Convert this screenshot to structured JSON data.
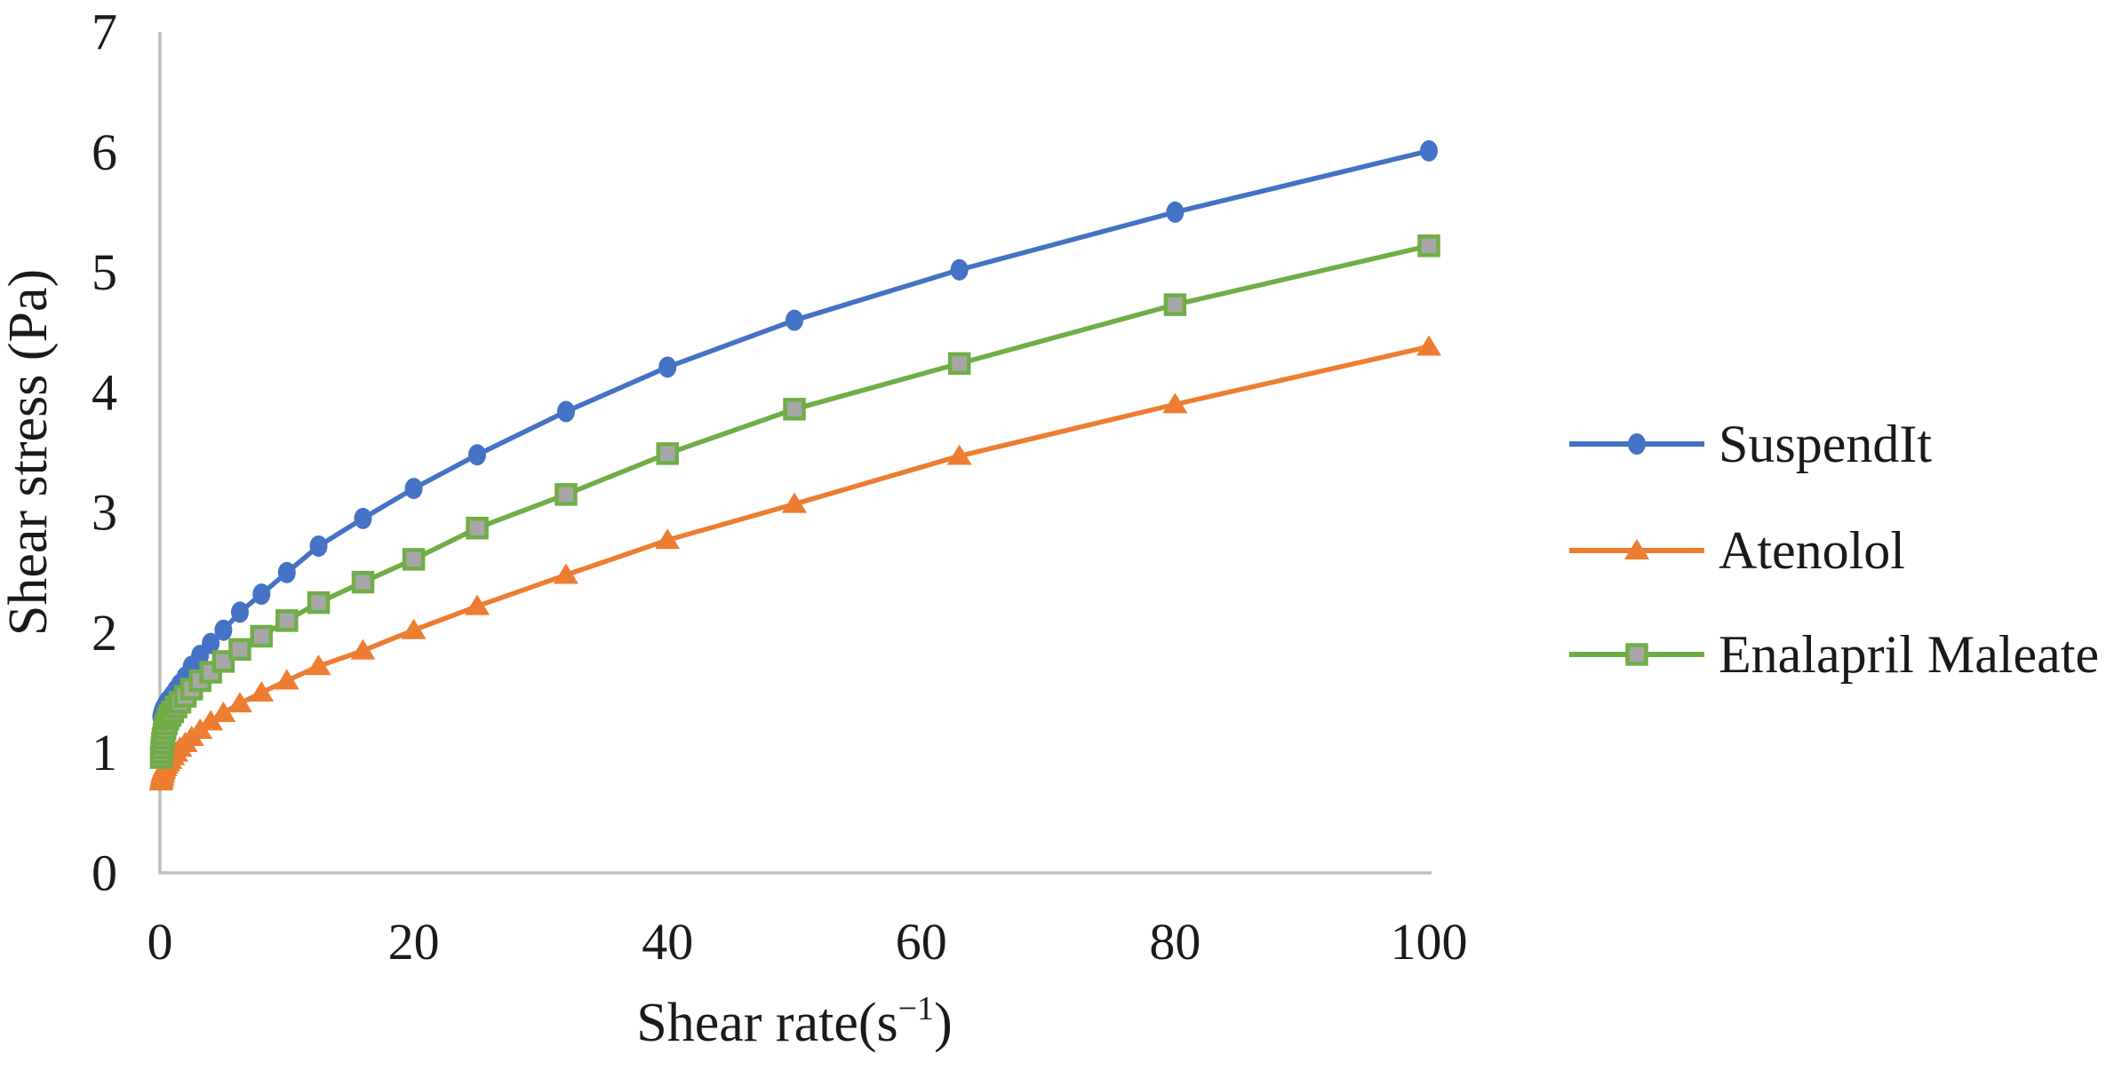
{
  "figure": {
    "background": "#ffffff",
    "text_color": "#1a1a1a",
    "axis_line_color": "#bfbfbf"
  },
  "y_axis": {
    "title": "Shear stress (Pa)",
    "range": [
      0,
      7
    ],
    "ticks": [
      "0",
      "1",
      "2",
      "3",
      "4",
      "5",
      "6",
      "7"
    ]
  },
  "x_axis": {
    "title_prefix": "Shear rate(s",
    "title_superscript": "−1",
    "title_suffix": ")",
    "range": [
      0,
      100
    ],
    "ticks": [
      "0",
      "20",
      "40",
      "60",
      "80",
      "100"
    ]
  },
  "legend": {
    "items": [
      {
        "label": "SuspendIt",
        "color": "#4472c4",
        "marker": "circle",
        "marker_fill": "#4472c4"
      },
      {
        "label": "Atenolol",
        "color": "#ed7d31",
        "marker": "triangle",
        "marker_fill": "#ed7d31"
      },
      {
        "label": "Enalapril Maleate",
        "color": "#70ad47",
        "marker": "square",
        "marker_fill": "#a6a6a6"
      }
    ]
  },
  "chart_data": {
    "type": "line",
    "xlabel": "Shear rate(s−1)",
    "ylabel": "Shear stress (Pa)",
    "x_range": [
      0,
      100
    ],
    "y_range": [
      0,
      7
    ],
    "grid": false,
    "legend_position": "right",
    "x": [
      0.1,
      0.13,
      0.16,
      0.2,
      0.25,
      0.32,
      0.4,
      0.5,
      0.63,
      0.8,
      1,
      1.26,
      1.58,
      2,
      2.5,
      3.16,
      4,
      5,
      6.3,
      8,
      10,
      12.5,
      16,
      20,
      25,
      32,
      40,
      50,
      63,
      80,
      100
    ],
    "series": [
      {
        "name": "SuspendIt",
        "color": "#4472c4",
        "marker": "circle",
        "marker_fill": "#4472c4",
        "values": [
          1.3,
          1.31,
          1.33,
          1.34,
          1.36,
          1.37,
          1.39,
          1.41,
          1.43,
          1.45,
          1.48,
          1.52,
          1.57,
          1.63,
          1.72,
          1.81,
          1.91,
          2.02,
          2.17,
          2.32,
          2.5,
          2.72,
          2.95,
          3.2,
          3.48,
          3.84,
          4.21,
          4.6,
          5.02,
          5.5,
          6.01
        ]
      },
      {
        "name": "Atenolol",
        "color": "#ed7d31",
        "marker": "triangle",
        "marker_fill": "#ed7d31",
        "values": [
          0.76,
          0.78,
          0.8,
          0.82,
          0.84,
          0.86,
          0.88,
          0.9,
          0.92,
          0.94,
          0.97,
          1.0,
          1.04,
          1.08,
          1.13,
          1.19,
          1.26,
          1.33,
          1.41,
          1.5,
          1.6,
          1.72,
          1.85,
          2.02,
          2.22,
          2.48,
          2.77,
          3.07,
          3.47,
          3.9,
          4.38
        ]
      },
      {
        "name": "Enalapril Maleate",
        "color": "#70ad47",
        "marker": "square",
        "marker_fill": "#a6a6a6",
        "values": [
          0.96,
          1.0,
          1.04,
          1.08,
          1.12,
          1.16,
          1.2,
          1.24,
          1.28,
          1.31,
          1.34,
          1.38,
          1.42,
          1.47,
          1.53,
          1.6,
          1.67,
          1.76,
          1.86,
          1.97,
          2.1,
          2.25,
          2.42,
          2.61,
          2.87,
          3.15,
          3.49,
          3.86,
          4.24,
          4.73,
          5.22
        ]
      }
    ]
  }
}
